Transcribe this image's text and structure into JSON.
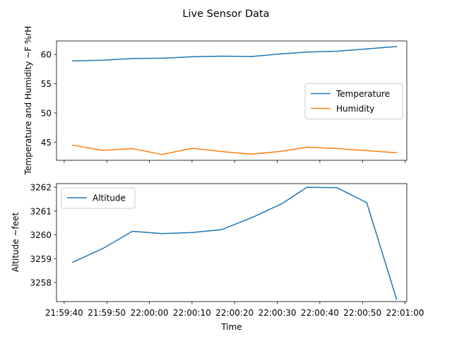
{
  "chart_data": {
    "title": "Live Sensor Data",
    "xlabel": "Time",
    "xticks": [
      "21:59:40",
      "21:59:50",
      "22:00:00",
      "22:00:10",
      "22:00:20",
      "22:00:30",
      "22:00:40",
      "22:00:50",
      "22:01:00"
    ],
    "xlim": [
      "21:59:38.2",
      "22:01:00.4"
    ],
    "subplots": [
      {
        "type": "line",
        "ylabel": "Temperature and Humidity ~F %rH",
        "ylim": [
          41.9,
          62.3
        ],
        "yticks": [
          45,
          50,
          55,
          60
        ],
        "legend_position": "center-right",
        "x": [
          "21:59:42",
          "21:59:49",
          "21:59:56",
          "22:00:03",
          "22:00:10",
          "22:00:17",
          "22:00:24",
          "22:00:31",
          "22:00:37",
          "22:00:44",
          "22:00:51",
          "22:00:58"
        ],
        "series": [
          {
            "name": "Temperature",
            "color": "#1f77b4",
            "values": [
              58.9,
              59.0,
              59.3,
              59.35,
              59.6,
              59.7,
              59.65,
              60.1,
              60.4,
              60.55,
              60.95,
              61.35
            ]
          },
          {
            "name": "Humidity",
            "color": "#ff7f0e",
            "values": [
              44.5,
              43.6,
              43.9,
              42.9,
              43.95,
              43.4,
              42.95,
              43.45,
              44.15,
              43.9,
              43.55,
              43.2
            ]
          }
        ]
      },
      {
        "type": "line",
        "ylabel": "Altitude ~feet",
        "ylim": [
          3257.2,
          3262.15
        ],
        "yticks": [
          3258,
          3259,
          3260,
          3261,
          3262
        ],
        "legend_position": "top-left",
        "x": [
          "21:59:42",
          "21:59:49",
          "21:59:56",
          "22:00:03",
          "22:00:10",
          "22:00:17",
          "22:00:24",
          "22:00:31",
          "22:00:37",
          "22:00:44",
          "22:00:51",
          "22:00:58"
        ],
        "series": [
          {
            "name": "Altitude",
            "color": "#1f77b4",
            "values": [
              3258.85,
              3259.42,
              3260.15,
              3260.05,
              3260.1,
              3260.22,
              3260.72,
              3261.3,
              3262.0,
              3261.98,
              3261.35,
              3257.3
            ]
          }
        ]
      }
    ]
  }
}
